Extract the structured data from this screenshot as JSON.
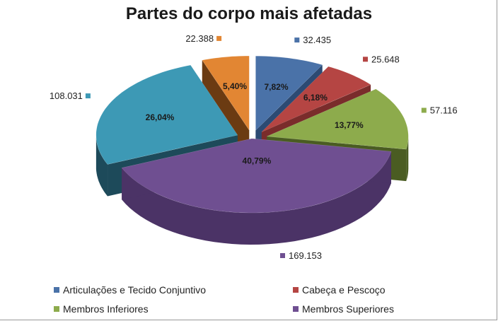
{
  "chart_data": {
    "type": "pie",
    "title": "Partes do corpo mais afetadas",
    "slices": [
      {
        "name": "Articulações e Tecido Conjuntivo",
        "value": 32435,
        "value_label": "32.435",
        "percent_label": "7,82%",
        "color": "#4a72a8",
        "side_color": "#2c4a73"
      },
      {
        "name": "Cabeça e Pescoço",
        "value": 25648,
        "value_label": "25.648",
        "percent_label": "6,18%",
        "color": "#b54543",
        "side_color": "#7a2c2b"
      },
      {
        "name": "Membros Inferiores",
        "value": 57116,
        "value_label": "57.116",
        "percent_label": "13,77%",
        "color": "#8dab4c",
        "side_color": "#4a5c22"
      },
      {
        "name": "Membros Superiores",
        "value": 169153,
        "value_label": "169.153",
        "percent_label": "40,79%",
        "color": "#6f4f91",
        "side_color": "#4b3366"
      },
      {
        "name": "",
        "value": 108031,
        "value_label": "108.031",
        "percent_label": "26,04%",
        "color": "#3d99b5",
        "side_color": "#1d4a5a"
      },
      {
        "name": "",
        "value": 22388,
        "value_label": "22.388",
        "percent_label": "5,40%",
        "color": "#e28633",
        "side_color": "#6b3b12"
      }
    ],
    "legend": [
      "Articulações e Tecido Conjuntivo",
      "Cabeça e Pescoço",
      "Membros Inferiores",
      "Membros Superiores"
    ],
    "legend_position": "bottom"
  }
}
